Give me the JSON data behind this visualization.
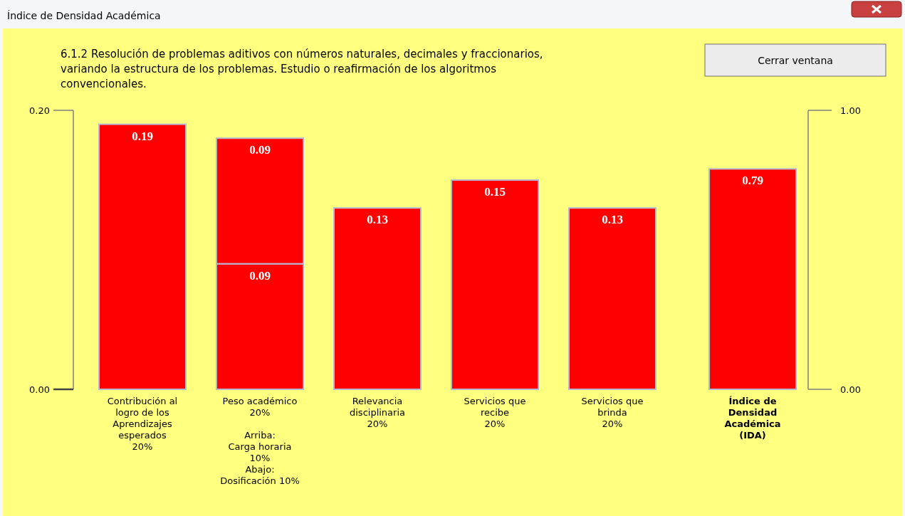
{
  "chart_data": {
    "type": "bar",
    "title": "Índice de Densidad Académica",
    "subtitle": "6.1.2 Resolución de problemas aditivos con números naturales, decimales y fraccionarios, variando la estructura de los problemas. Estudio o reafirmación de los algoritmos convencionales.",
    "annotations": [
      "Cerrar ventana"
    ],
    "categories": [
      "Contribución al\nlogro de los\nAprendizajes\nesperados\n20%",
      "Peso académico\n20%\n\nArriba:\nCarga horaria\n10%\nAbajo:\nDosificación 10%",
      "Relevancia\ndisciplinaria\n20%",
      "Servicios que\nrecibe\n20%",
      "Servicios que\nbrinda\n20%",
      "Índice de\nDensidad\nAcadémica\n(IDA)"
    ],
    "stacked": true,
    "data_labels": true,
    "series": [
      {
        "color": "#ff0000",
        "values": [
          0.19,
          0.09,
          0.13,
          0.15,
          0.13,
          null
        ]
      },
      {
        "color": "#ff0000",
        "values": [
          null,
          0.09,
          null,
          null,
          null,
          null
        ]
      },
      {
        "color": "#ff0000",
        "axis": "y2",
        "values": [
          null,
          null,
          null,
          null,
          null,
          0.79
        ]
      }
    ],
    "ylim": [
      0,
      0.2
    ],
    "yticks": [
      {
        "value": 0,
        "label": "0.00"
      },
      {
        "value": 0.2,
        "label": "0.20"
      }
    ],
    "y2lim": [
      0,
      1
    ],
    "y2ticks": [
      {
        "value": 0,
        "label": "0.00"
      },
      {
        "value": 1,
        "label": "1.00"
      }
    ]
  }
}
